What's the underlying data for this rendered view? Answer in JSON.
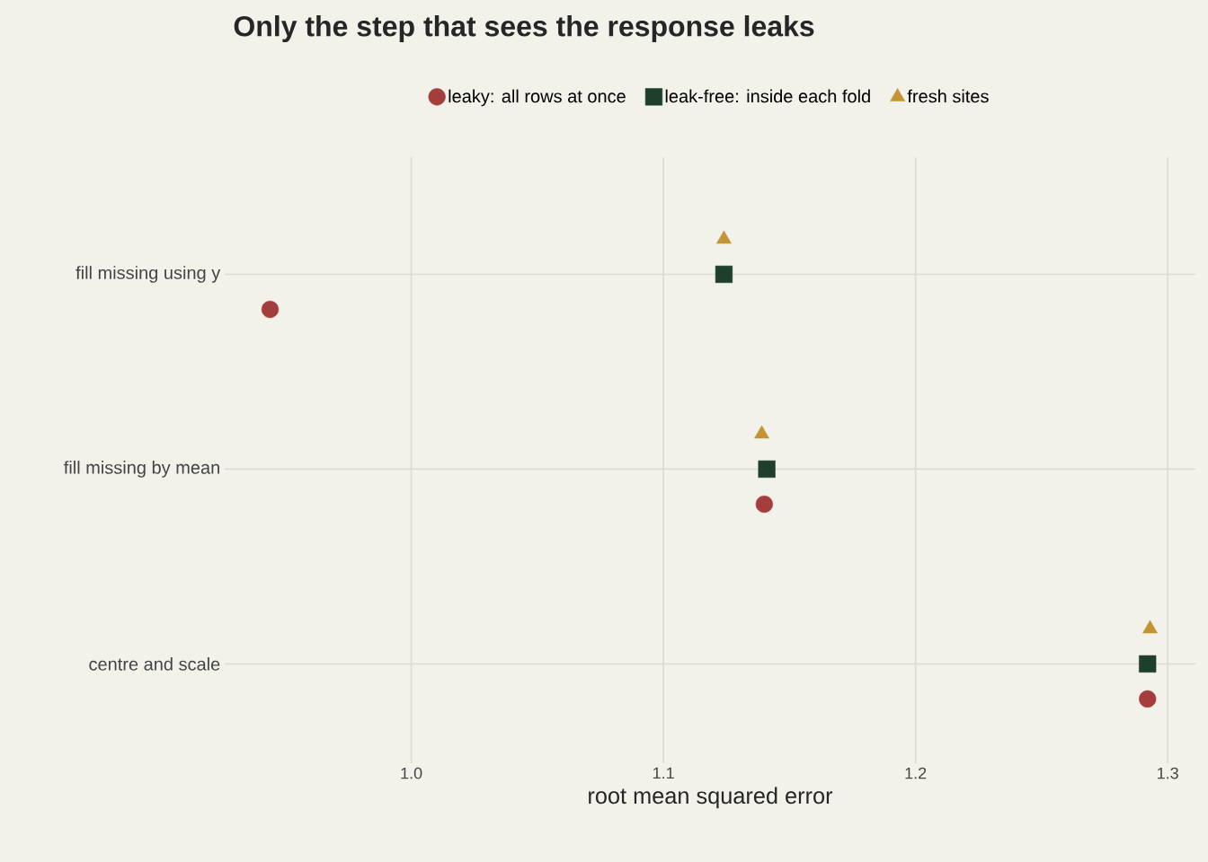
{
  "chart_data": {
    "type": "scatter",
    "orientation": "horizontal",
    "title": "Only the step that sees the response leaks",
    "xlabel": "root mean squared error",
    "categories": [
      "fill missing using y",
      "fill missing by mean",
      "centre and scale"
    ],
    "series": [
      {
        "name": "leaky: all rows at once",
        "color": "#a63d3d",
        "marker": "circle",
        "values": [
          0.944,
          1.14,
          1.292
        ]
      },
      {
        "name": "leak-free: inside each fold",
        "color": "#1e3f2c",
        "marker": "square",
        "values": [
          1.124,
          1.141,
          1.292
        ]
      },
      {
        "name": "fresh sites",
        "color": "#c39334",
        "marker": "triangle",
        "values": [
          1.124,
          1.139,
          1.293
        ]
      }
    ],
    "xlim": [
      0.926,
      1.311
    ],
    "xticks": [
      {
        "value": 1.0,
        "label": "1.0"
      },
      1.1,
      1.2,
      1.3
    ],
    "grid": true,
    "legend": "top"
  }
}
